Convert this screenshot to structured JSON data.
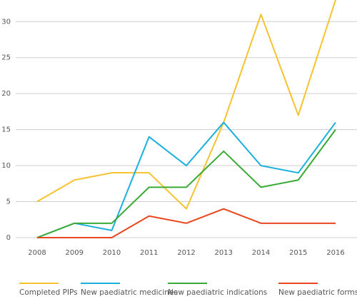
{
  "chart_data": {
    "type": "line",
    "categories": [
      "2008",
      "2009",
      "2010",
      "2011",
      "2012",
      "2013",
      "2014",
      "2015",
      "2016"
    ],
    "series": [
      {
        "name": "Completed PIPs",
        "color": "#f6c22f",
        "values": [
          5,
          8,
          9,
          9,
          4,
          16,
          31,
          17,
          33
        ]
      },
      {
        "name": "New paediatric medicines",
        "color": "#1aafdc",
        "values": [
          0,
          2,
          1,
          14,
          10,
          16,
          10,
          9,
          16
        ]
      },
      {
        "name": "New paediatric indications",
        "color": "#3aa935",
        "values": [
          0,
          2,
          2,
          7,
          7,
          12,
          7,
          8,
          15
        ]
      },
      {
        "name": "New paediatric forms",
        "color": "#e8461e",
        "values": [
          0,
          0,
          0,
          3,
          2,
          4,
          2,
          2,
          2
        ]
      }
    ],
    "ylim": [
      0,
      33
    ],
    "yticks": [
      0,
      5,
      10,
      15,
      20,
      25,
      30
    ],
    "grid": true,
    "legend": "bottom"
  }
}
